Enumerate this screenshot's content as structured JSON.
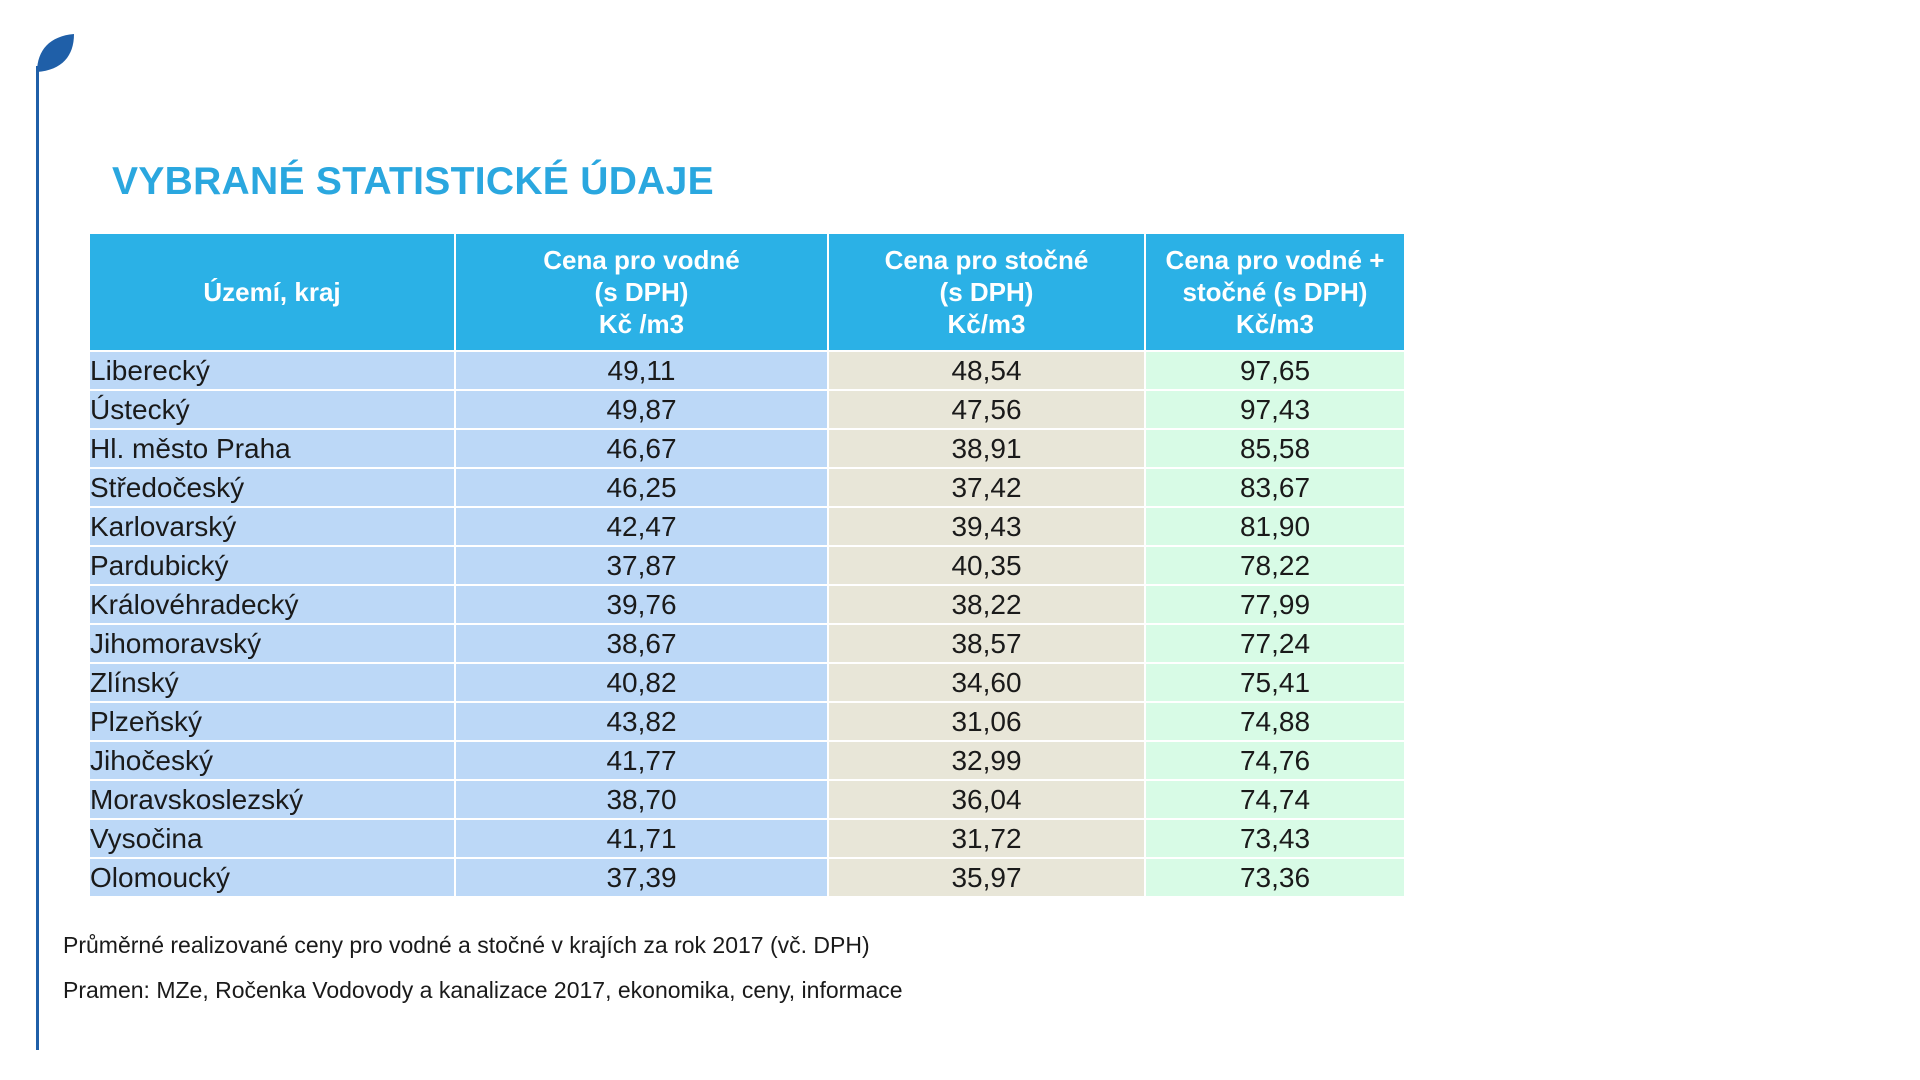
{
  "title": "VYBRANÉ STATISTICKÉ ÚDAJE",
  "table": {
    "headers": {
      "region": "Území, kraj",
      "col1_line1": "Cena pro vodné",
      "col1_line2": "(s DPH)",
      "col1_unit": "Kč /m3",
      "col2_line1": "Cena pro stočné",
      "col2_line2": "(s DPH)",
      "col2_unit": "Kč/m3",
      "col3_line1": "Cena pro vodné +",
      "col3_line2": "stočné (s DPH)",
      "col3_unit": "Kč/m3"
    },
    "rows": [
      {
        "region": "Liberecký",
        "vodne": "49,11",
        "stocne": "48,54",
        "total": "97,65"
      },
      {
        "region": "Ústecký",
        "vodne": "49,87",
        "stocne": "47,56",
        "total": "97,43"
      },
      {
        "region": "Hl. město Praha",
        "vodne": "46,67",
        "stocne": "38,91",
        "total": "85,58"
      },
      {
        "region": "Středočeský",
        "vodne": "46,25",
        "stocne": "37,42",
        "total": "83,67"
      },
      {
        "region": "Karlovarský",
        "vodne": "42,47",
        "stocne": "39,43",
        "total": "81,90"
      },
      {
        "region": "Pardubický",
        "vodne": "37,87",
        "stocne": "40,35",
        "total": "78,22"
      },
      {
        "region": "Královéhradecký",
        "vodne": "39,76",
        "stocne": "38,22",
        "total": "77,99"
      },
      {
        "region": "Jihomoravský",
        "vodne": "38,67",
        "stocne": "38,57",
        "total": "77,24"
      },
      {
        "region": "Zlínský",
        "vodne": "40,82",
        "stocne": "34,60",
        "total": "75,41"
      },
      {
        "region": "Plzeňský",
        "vodne": "43,82",
        "stocne": "31,06",
        "total": "74,88"
      },
      {
        "region": "Jihočeský",
        "vodne": "41,77",
        "stocne": "32,99",
        "total": "74,76"
      },
      {
        "region": "Moravskoslezský",
        "vodne": "38,70",
        "stocne": "36,04",
        "total": "74,74"
      },
      {
        "region": "Vysočina",
        "vodne": "41,71",
        "stocne": "31,72",
        "total": "73,43"
      },
      {
        "region": "Olomoucký",
        "vodne": "37,39",
        "stocne": "35,97",
        "total": "73,36"
      }
    ]
  },
  "caption": "Průměrné realizované ceny pro vodné a stočné v krajích za rok 2017 (vč. DPH)",
  "source": "Pramen: MZe, Ročenka Vodovody a kanalizace 2017, ekonomika, ceny, informace",
  "colors": {
    "title": "#2aa7df",
    "header_bg": "#2bb1e6",
    "col_region_bg": "#bcd8f7",
    "col_stocne_bg": "#e8e6d8",
    "col_total_bg": "#d8fbe6",
    "accent": "#1f5fa8"
  },
  "icons": {
    "brand": "leaf-icon"
  }
}
